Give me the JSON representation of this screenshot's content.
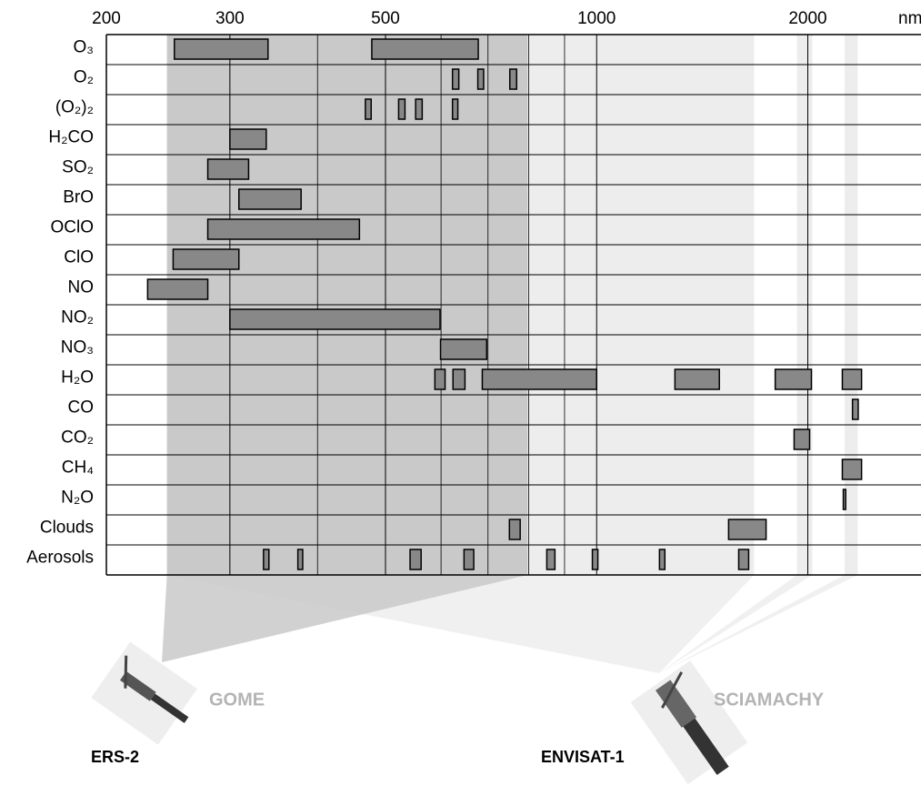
{
  "chart_data": {
    "type": "range",
    "x_unit": "nm",
    "xscale": "log",
    "xlim": [
      200,
      2900
    ],
    "xticks": [
      200,
      300,
      500,
      1000,
      2000
    ],
    "minor_xticks": [
      400,
      600,
      700,
      800,
      900
    ],
    "color": "#888888",
    "categories": [
      "O₃",
      "O₂",
      "(O₂)₂",
      "H₂CO",
      "SO₂",
      "BrO",
      "OClO",
      "ClO",
      "NO",
      "NO₂",
      "NO₃",
      "H₂O",
      "CO",
      "CO₂",
      "CH₄",
      "N₂O",
      "Clouds",
      "Aerosols"
    ],
    "ranges": [
      [
        [
          250,
          340
        ],
        [
          478,
          678
        ]
      ],
      [
        [
          623,
          636
        ],
        [
          677,
          690
        ],
        [
          752,
          769
        ]
      ],
      [
        [
          468,
          477
        ],
        [
          522,
          533
        ],
        [
          552,
          564
        ],
        [
          623,
          634
        ]
      ],
      [
        [
          300,
          338
        ]
      ],
      [
        [
          279,
          319
        ]
      ],
      [
        [
          309,
          379
        ]
      ],
      [
        [
          279,
          459
        ]
      ],
      [
        [
          249,
          309
        ]
      ],
      [
        [
          229,
          279
        ]
      ],
      [
        [
          300,
          598
        ]
      ],
      [
        [
          599,
          697
        ]
      ],
      [
        [
          588,
          608
        ],
        [
          624,
          649
        ],
        [
          687,
          1000
        ],
        [
          1293,
          1496
        ],
        [
          1797,
          2024
        ],
        [
          2240,
          2386
        ]
      ],
      [
        [
          2316,
          2360
        ]
      ],
      [
        [
          1912,
          2012
        ]
      ],
      [
        [
          2240,
          2386
        ]
      ],
      [
        [
          2247,
          2265
        ]
      ],
      [
        [
          751,
          778
        ],
        [
          1542,
          1744
        ]
      ],
      [
        [
          335,
          341
        ],
        [
          375,
          381
        ],
        [
          542,
          562
        ],
        [
          647,
          668
        ],
        [
          849,
          872
        ],
        [
          986,
          1004
        ],
        [
          1229,
          1251
        ],
        [
          1594,
          1647
        ]
      ]
    ],
    "instruments": [
      {
        "name": "GOME",
        "satellite": "ERS-2",
        "color": "#c9c9c9",
        "ranges": [
          [
            244,
            797
          ]
        ]
      },
      {
        "name": "SCIAMACHY",
        "satellite": "ENVISAT-1",
        "color": "#ededed",
        "ranges": [
          [
            244,
            1677
          ],
          [
            1930,
            2030
          ],
          [
            2257,
            2356
          ]
        ]
      }
    ]
  }
}
